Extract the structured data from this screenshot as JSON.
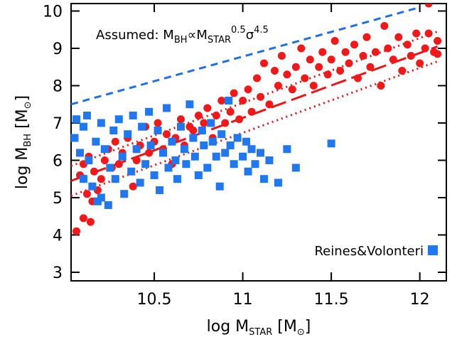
{
  "chart_data": {
    "type": "scatter",
    "annotation": {
      "lead": "Assumed: M",
      "sub1": "BH",
      "mid": "∝M",
      "sub2": "STAR",
      "sup1": "0.5",
      "sigma": "σ",
      "sup2": "4.5"
    },
    "x_label": {
      "text": "log M",
      "sub": "STAR",
      "unit": " [M",
      "unit_sub": "⊙",
      "end": "]"
    },
    "y_label": {
      "text": "log M",
      "sub": "BH",
      "unit": " [M",
      "unit_sub": "⊙",
      "end": "]"
    },
    "xlim": [
      10.03,
      12.15
    ],
    "ylim": [
      2.77,
      10.2
    ],
    "xticks": [
      10.5,
      11.0,
      11.5,
      12.0
    ],
    "yticks": [
      3,
      4,
      5,
      6,
      7,
      8,
      9,
      10
    ],
    "legend": "bottom-right",
    "series": [
      {
        "mode": "lines",
        "dash": "dashed",
        "color": "#1f6fe6",
        "x": [
          10.03,
          12.0
        ],
        "values": [
          7.5,
          10.1
        ]
      },
      {
        "mode": "lines",
        "dash": "longdash",
        "color": "#e8161b",
        "x": [
          10.03,
          12.1
        ],
        "values": [
          5.45,
          9.05
        ]
      },
      {
        "mode": "lines",
        "dash": "dotted",
        "color": "#e8161b",
        "x": [
          10.03,
          12.1
        ],
        "values": [
          5.85,
          9.45
        ]
      },
      {
        "mode": "lines",
        "dash": "dotted",
        "color": "#e8161b",
        "x": [
          10.03,
          12.1
        ],
        "values": [
          5.05,
          8.65
        ]
      },
      {
        "mode": "markers",
        "marker": "circle",
        "color": "#f01818",
        "x": [
          10.06,
          10.1,
          10.14,
          10.12,
          10.15,
          10.08,
          10.1,
          10.13,
          10.16,
          10.18,
          10.2,
          10.22,
          10.24,
          10.26,
          10.28,
          10.3,
          10.32,
          10.35,
          10.38,
          10.4,
          10.42,
          10.45,
          10.47,
          10.5,
          10.52,
          10.55,
          10.57,
          10.6,
          10.62,
          10.65,
          10.67,
          10.7,
          10.72,
          10.75,
          10.78,
          10.8,
          10.83,
          10.85,
          10.88,
          10.9,
          10.93,
          10.95,
          10.98,
          11.0,
          11.03,
          11.05,
          11.08,
          11.1,
          11.12,
          11.15,
          11.18,
          11.2,
          11.22,
          11.25,
          11.28,
          11.3,
          11.33,
          11.35,
          11.38,
          11.4,
          11.43,
          11.45,
          11.48,
          11.5,
          11.52,
          11.55,
          11.58,
          11.6,
          11.63,
          11.65,
          11.68,
          11.7,
          11.72,
          11.75,
          11.78,
          11.8,
          11.82,
          11.85,
          11.88,
          11.9,
          11.93,
          11.95,
          11.98,
          12.0,
          12.03,
          12.05,
          12.05,
          12.08,
          12.1,
          12.1
        ],
        "values": [
          4.1,
          4.45,
          4.35,
          5.1,
          4.9,
          5.6,
          5.9,
          6.1,
          5.7,
          5.2,
          5.5,
          6.0,
          6.3,
          5.8,
          6.5,
          5.9,
          6.2,
          6.6,
          5.3,
          6.0,
          6.4,
          6.9,
          6.2,
          6.5,
          7.0,
          6.3,
          6.7,
          5.9,
          6.6,
          7.1,
          6.4,
          6.9,
          6.8,
          7.2,
          7.0,
          7.4,
          6.6,
          7.2,
          7.6,
          7.0,
          7.3,
          7.8,
          7.1,
          7.6,
          7.9,
          7.3,
          8.2,
          7.7,
          8.6,
          7.5,
          8.4,
          8.0,
          8.8,
          8.3,
          7.9,
          8.5,
          9.0,
          8.2,
          8.7,
          8.0,
          8.5,
          8.9,
          8.3,
          8.7,
          9.2,
          8.4,
          8.9,
          8.6,
          9.1,
          8.2,
          8.8,
          9.3,
          8.5,
          8.9,
          8.0,
          9.6,
          9.0,
          8.7,
          9.3,
          8.4,
          9.1,
          8.8,
          9.4,
          8.6,
          9.0,
          10.2,
          9.4,
          8.9,
          9.2,
          8.85
        ]
      },
      {
        "mode": "markers",
        "marker": "square",
        "color": "#1f78f0",
        "name": "Reines&Volonteri",
        "x": [
          10.05,
          10.06,
          10.08,
          10.1,
          10.12,
          10.1,
          10.13,
          10.15,
          10.17,
          10.18,
          10.2,
          10.2,
          10.22,
          10.24,
          10.25,
          10.27,
          10.28,
          10.3,
          10.32,
          10.33,
          10.35,
          10.37,
          10.38,
          10.4,
          10.42,
          10.43,
          10.45,
          10.47,
          10.48,
          10.5,
          10.52,
          10.53,
          10.55,
          10.57,
          10.58,
          10.6,
          10.62,
          10.63,
          10.65,
          10.67,
          10.68,
          10.7,
          10.72,
          10.73,
          10.75,
          10.77,
          10.78,
          10.8,
          10.82,
          10.83,
          10.85,
          10.87,
          10.88,
          10.9,
          10.92,
          10.93,
          10.95,
          10.97,
          11.0,
          11.02,
          11.03,
          11.05,
          11.07,
          11.1,
          11.12,
          11.15,
          11.2,
          11.25,
          11.3,
          11.5
        ],
        "values": [
          6.6,
          7.1,
          6.2,
          6.9,
          7.2,
          5.5,
          6.0,
          5.3,
          6.5,
          4.9,
          7.0,
          5.0,
          6.3,
          4.8,
          5.8,
          6.8,
          5.5,
          7.1,
          6.1,
          5.1,
          6.7,
          5.7,
          7.2,
          6.3,
          5.4,
          6.9,
          5.9,
          7.3,
          6.4,
          5.6,
          6.8,
          5.2,
          6.2,
          7.4,
          5.8,
          6.5,
          6.0,
          5.5,
          6.9,
          6.3,
          5.9,
          7.5,
          6.6,
          6.1,
          5.6,
          6.8,
          6.4,
          5.8,
          7.0,
          6.5,
          6.1,
          5.3,
          6.7,
          6.2,
          7.6,
          6.4,
          5.9,
          6.6,
          6.1,
          6.5,
          5.7,
          6.3,
          5.9,
          6.2,
          5.5,
          6.0,
          5.4,
          6.3,
          5.8,
          6.45
        ]
      }
    ]
  }
}
